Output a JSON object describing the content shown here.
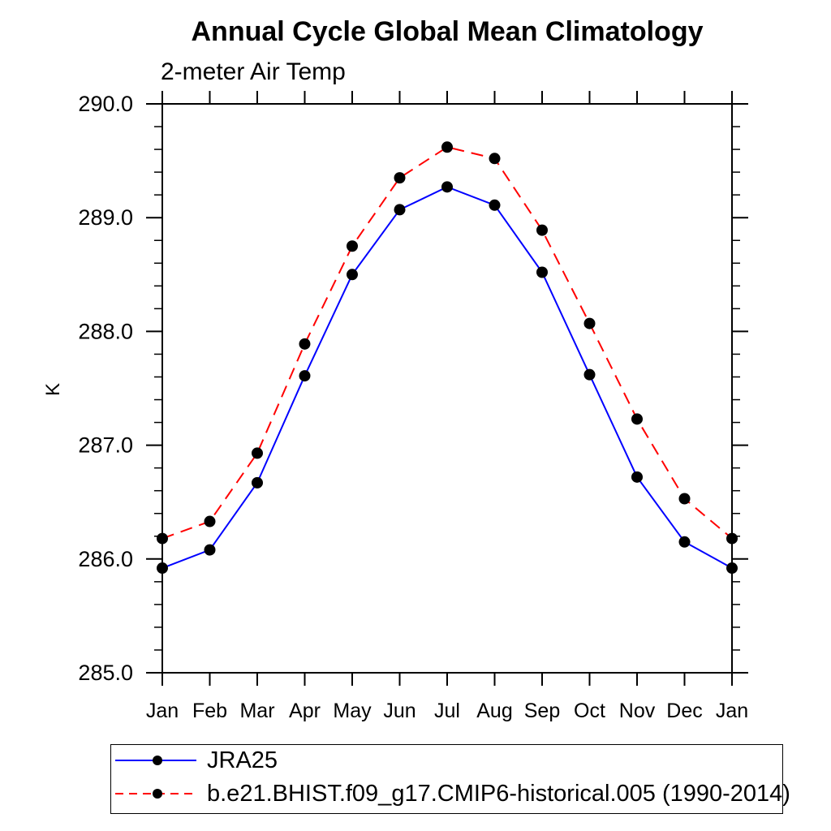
{
  "chart_data": {
    "type": "line",
    "title": "Annual Cycle Global Mean Climatology",
    "subtitle": "2-meter Air Temp",
    "ylabel": "K",
    "xlabel": "",
    "ylim": [
      285.0,
      290.0
    ],
    "ytick_major": 1.0,
    "ytick_minor": 0.2,
    "grid": false,
    "legend_position": "bottom-left",
    "axis_color": "#000000",
    "marker_color": "#000000",
    "categories": [
      "Jan",
      "Feb",
      "Mar",
      "Apr",
      "May",
      "Jun",
      "Jul",
      "Aug",
      "Sep",
      "Oct",
      "Nov",
      "Dec",
      "Jan"
    ],
    "series": [
      {
        "name": "JRA25",
        "color": "#0000ff",
        "line_style": "solid",
        "marker": "filled-circle",
        "values": [
          285.92,
          286.08,
          286.67,
          287.61,
          288.5,
          289.07,
          289.27,
          289.11,
          288.52,
          287.62,
          286.72,
          286.15,
          285.92
        ]
      },
      {
        "name": "b.e21.BHIST.f09_g17.CMIP6-historical.005 (1990-2014)",
        "color": "#ff0000",
        "line_style": "dashed",
        "marker": "filled-circle",
        "values": [
          286.18,
          286.33,
          286.93,
          287.89,
          288.75,
          289.35,
          289.62,
          289.52,
          288.89,
          288.07,
          287.23,
          286.53,
          286.18
        ]
      }
    ]
  }
}
